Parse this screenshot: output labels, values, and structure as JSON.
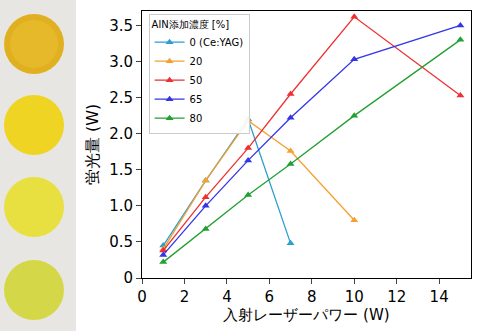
{
  "chart_data": {
    "type": "line",
    "xlabel": "入射レーザーパワー (W)",
    "ylabel": "蛍光量 (W)",
    "legend_title": "AlN添加濃度 [%]",
    "legend": "upper left",
    "marker": "triangle",
    "grid": false,
    "x": [
      1,
      3,
      5,
      7,
      10,
      15
    ],
    "series": [
      {
        "name": "0 (Ce:YAG)",
        "color": "#2a9fd0",
        "values": [
          0.45,
          1.35,
          2.2,
          0.48,
          null,
          null
        ]
      },
      {
        "name": "20",
        "color": "#f5a030",
        "values": [
          0.4,
          1.35,
          2.18,
          1.76,
          0.8,
          null
        ]
      },
      {
        "name": "50",
        "color": "#ee3030",
        "values": [
          0.38,
          1.12,
          1.8,
          2.55,
          3.62,
          2.53
        ]
      },
      {
        "name": "65",
        "color": "#3434e8",
        "values": [
          0.32,
          1.0,
          1.63,
          2.22,
          3.03,
          3.5
        ]
      },
      {
        "name": "80",
        "color": "#22a032",
        "values": [
          0.22,
          0.68,
          1.15,
          1.58,
          2.25,
          3.3
        ]
      }
    ],
    "xlim": [
      0,
      15.5
    ],
    "xticks": [
      0,
      2,
      4,
      6,
      8,
      10,
      12,
      14
    ],
    "ylim": [
      0,
      3.7
    ],
    "yticks": [
      0,
      0.5,
      {
        "value": 1,
        "label": "1.0"
      },
      1.5,
      {
        "value": 2,
        "label": "2.0"
      },
      2.5,
      {
        "value": 3,
        "label": "3.0"
      },
      3.5
    ]
  }
}
